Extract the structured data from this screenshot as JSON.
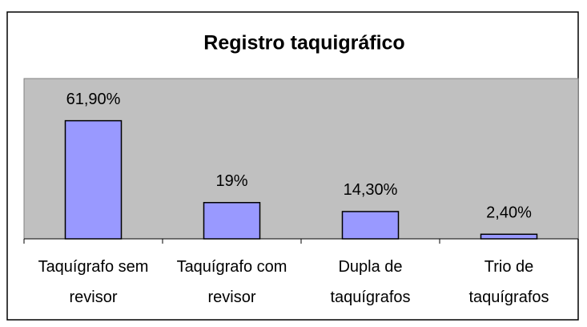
{
  "chart_data": {
    "type": "bar",
    "title": "Registro taquigráfico",
    "categories": [
      "Taquígrafo sem revisor",
      "Taquígrafo com revisor",
      "Dupla de taquígrafos",
      "Trio de taquígrafos"
    ],
    "values": [
      61.9,
      19,
      14.3,
      2.4
    ],
    "value_labels": [
      "61,90%",
      "19%",
      "14,30%",
      "2,40%"
    ],
    "color": "#9999ff",
    "ylim": [
      0,
      84
    ]
  }
}
